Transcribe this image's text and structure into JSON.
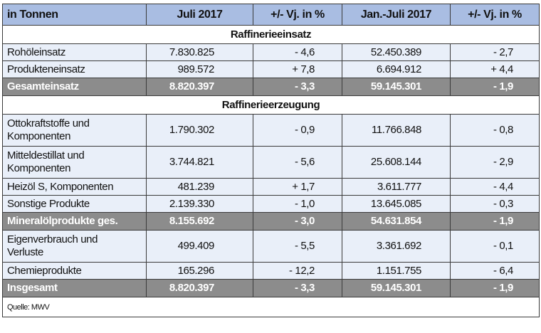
{
  "table": {
    "header": [
      "in Tonnen",
      "Juli 2017",
      "+/- Vj. in %",
      "Jan.-Juli 2017",
      "+/- Vj. in %"
    ],
    "sections": [
      {
        "title": "Raffinerieeinsatz",
        "rows": [
          [
            "Rohöleinsatz",
            "7.830.825",
            "- 4,6",
            "52.450.389",
            "- 2,7"
          ],
          [
            "Produkteneinsatz",
            "989.572",
            "+ 7,8",
            "6.694.912",
            "+ 4,4"
          ]
        ],
        "total": [
          "Gesamteinsatz",
          "8.820.397",
          "- 3,3",
          "59.145.301",
          "- 1,9"
        ]
      },
      {
        "title": "Raffinerieerzeugung",
        "rows": [
          [
            "Ottokraftstoffe und Komponenten",
            "1.790.302",
            "- 0,9",
            "11.766.848",
            "- 0,8"
          ],
          [
            "Mitteldestillat und Komponenten",
            "3.744.821",
            "- 5,6",
            "25.608.144",
            "- 2,9"
          ],
          [
            "Heizöl S, Komponenten",
            "481.239",
            "+ 1,7",
            "3.611.777",
            "- 4,4"
          ],
          [
            "Sonstige Produkte",
            "2.139.330",
            "- 1,0",
            "13.645.085",
            "- 0,3"
          ]
        ],
        "total": [
          "Mineralölprodukte ges.",
          "8.155.692",
          "- 3,0",
          "54.631.854",
          "- 1,9"
        ]
      },
      {
        "rows": [
          [
            "Eigenverbrauch und Verluste",
            "499.409",
            "- 5,5",
            "3.361.692",
            "- 0,1"
          ],
          [
            "Chemieprodukte",
            "165.296",
            "- 12,2",
            "1.151.755",
            "- 6,4"
          ]
        ],
        "total": [
          "Insgesamt",
          "8.820.397",
          "- 3,3",
          "59.145.301",
          "- 1,9"
        ]
      }
    ],
    "source": "Quelle: MWV"
  }
}
